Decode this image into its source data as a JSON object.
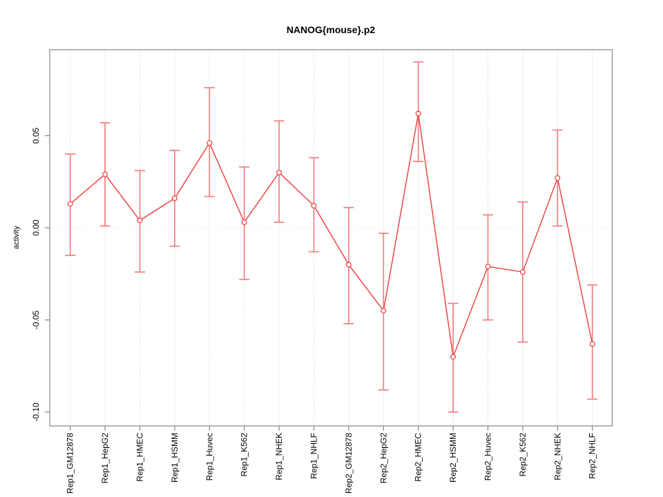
{
  "chart_data": {
    "type": "line",
    "title": "NANOG{mouse}.p2",
    "xlabel": "",
    "ylabel": "activity",
    "legend": "none",
    "grid": "vertical dashed gridline at each category; dotted horizontal reference line at y=0",
    "ylim": [
      -0.107,
      0.097
    ],
    "ytick_values": [
      0.05,
      0.0,
      -0.05,
      -0.1
    ],
    "ytick_labels": [
      "0.05",
      "0.00",
      "-0.05",
      "-0.10"
    ],
    "categories": [
      "Rep1_GM12878",
      "Rep1_HepG2",
      "Rep1_HMEC",
      "Rep1_HSMM",
      "Rep1_Huvec",
      "Rep1_K562",
      "Rep1_NHEK",
      "Rep1_NHLF",
      "Rep2_GM12878",
      "Rep2_HepG2",
      "Rep2_HMEC",
      "Rep2_HSMM",
      "Rep2_Huvec",
      "Rep2_K562",
      "Rep2_NHEK",
      "Rep2_NHLF"
    ],
    "series": [
      {
        "name": "activity",
        "values": [
          0.013,
          0.029,
          0.004,
          0.016,
          0.046,
          0.003,
          0.03,
          0.012,
          -0.02,
          -0.045,
          0.062,
          -0.07,
          -0.021,
          -0.024,
          0.027,
          -0.063
        ],
        "upper": [
          0.04,
          0.057,
          0.031,
          0.042,
          0.076,
          0.033,
          0.058,
          0.038,
          0.011,
          -0.003,
          0.09,
          -0.041,
          0.007,
          0.014,
          0.053,
          -0.031
        ],
        "lower": [
          -0.015,
          0.001,
          -0.024,
          -0.01,
          0.017,
          -0.028,
          0.003,
          -0.013,
          -0.052,
          -0.088,
          0.036,
          -0.1,
          -0.05,
          -0.062,
          0.001,
          -0.093
        ]
      }
    ],
    "colors": {
      "series_line": "#ee4545",
      "point_outline": "#ee4545",
      "error_bar": "#f27e7e",
      "grid_line": "#d6d6d6",
      "zero_line": "#e4e4e4",
      "axis_box": "#848484",
      "tick_text": "#000000"
    }
  }
}
